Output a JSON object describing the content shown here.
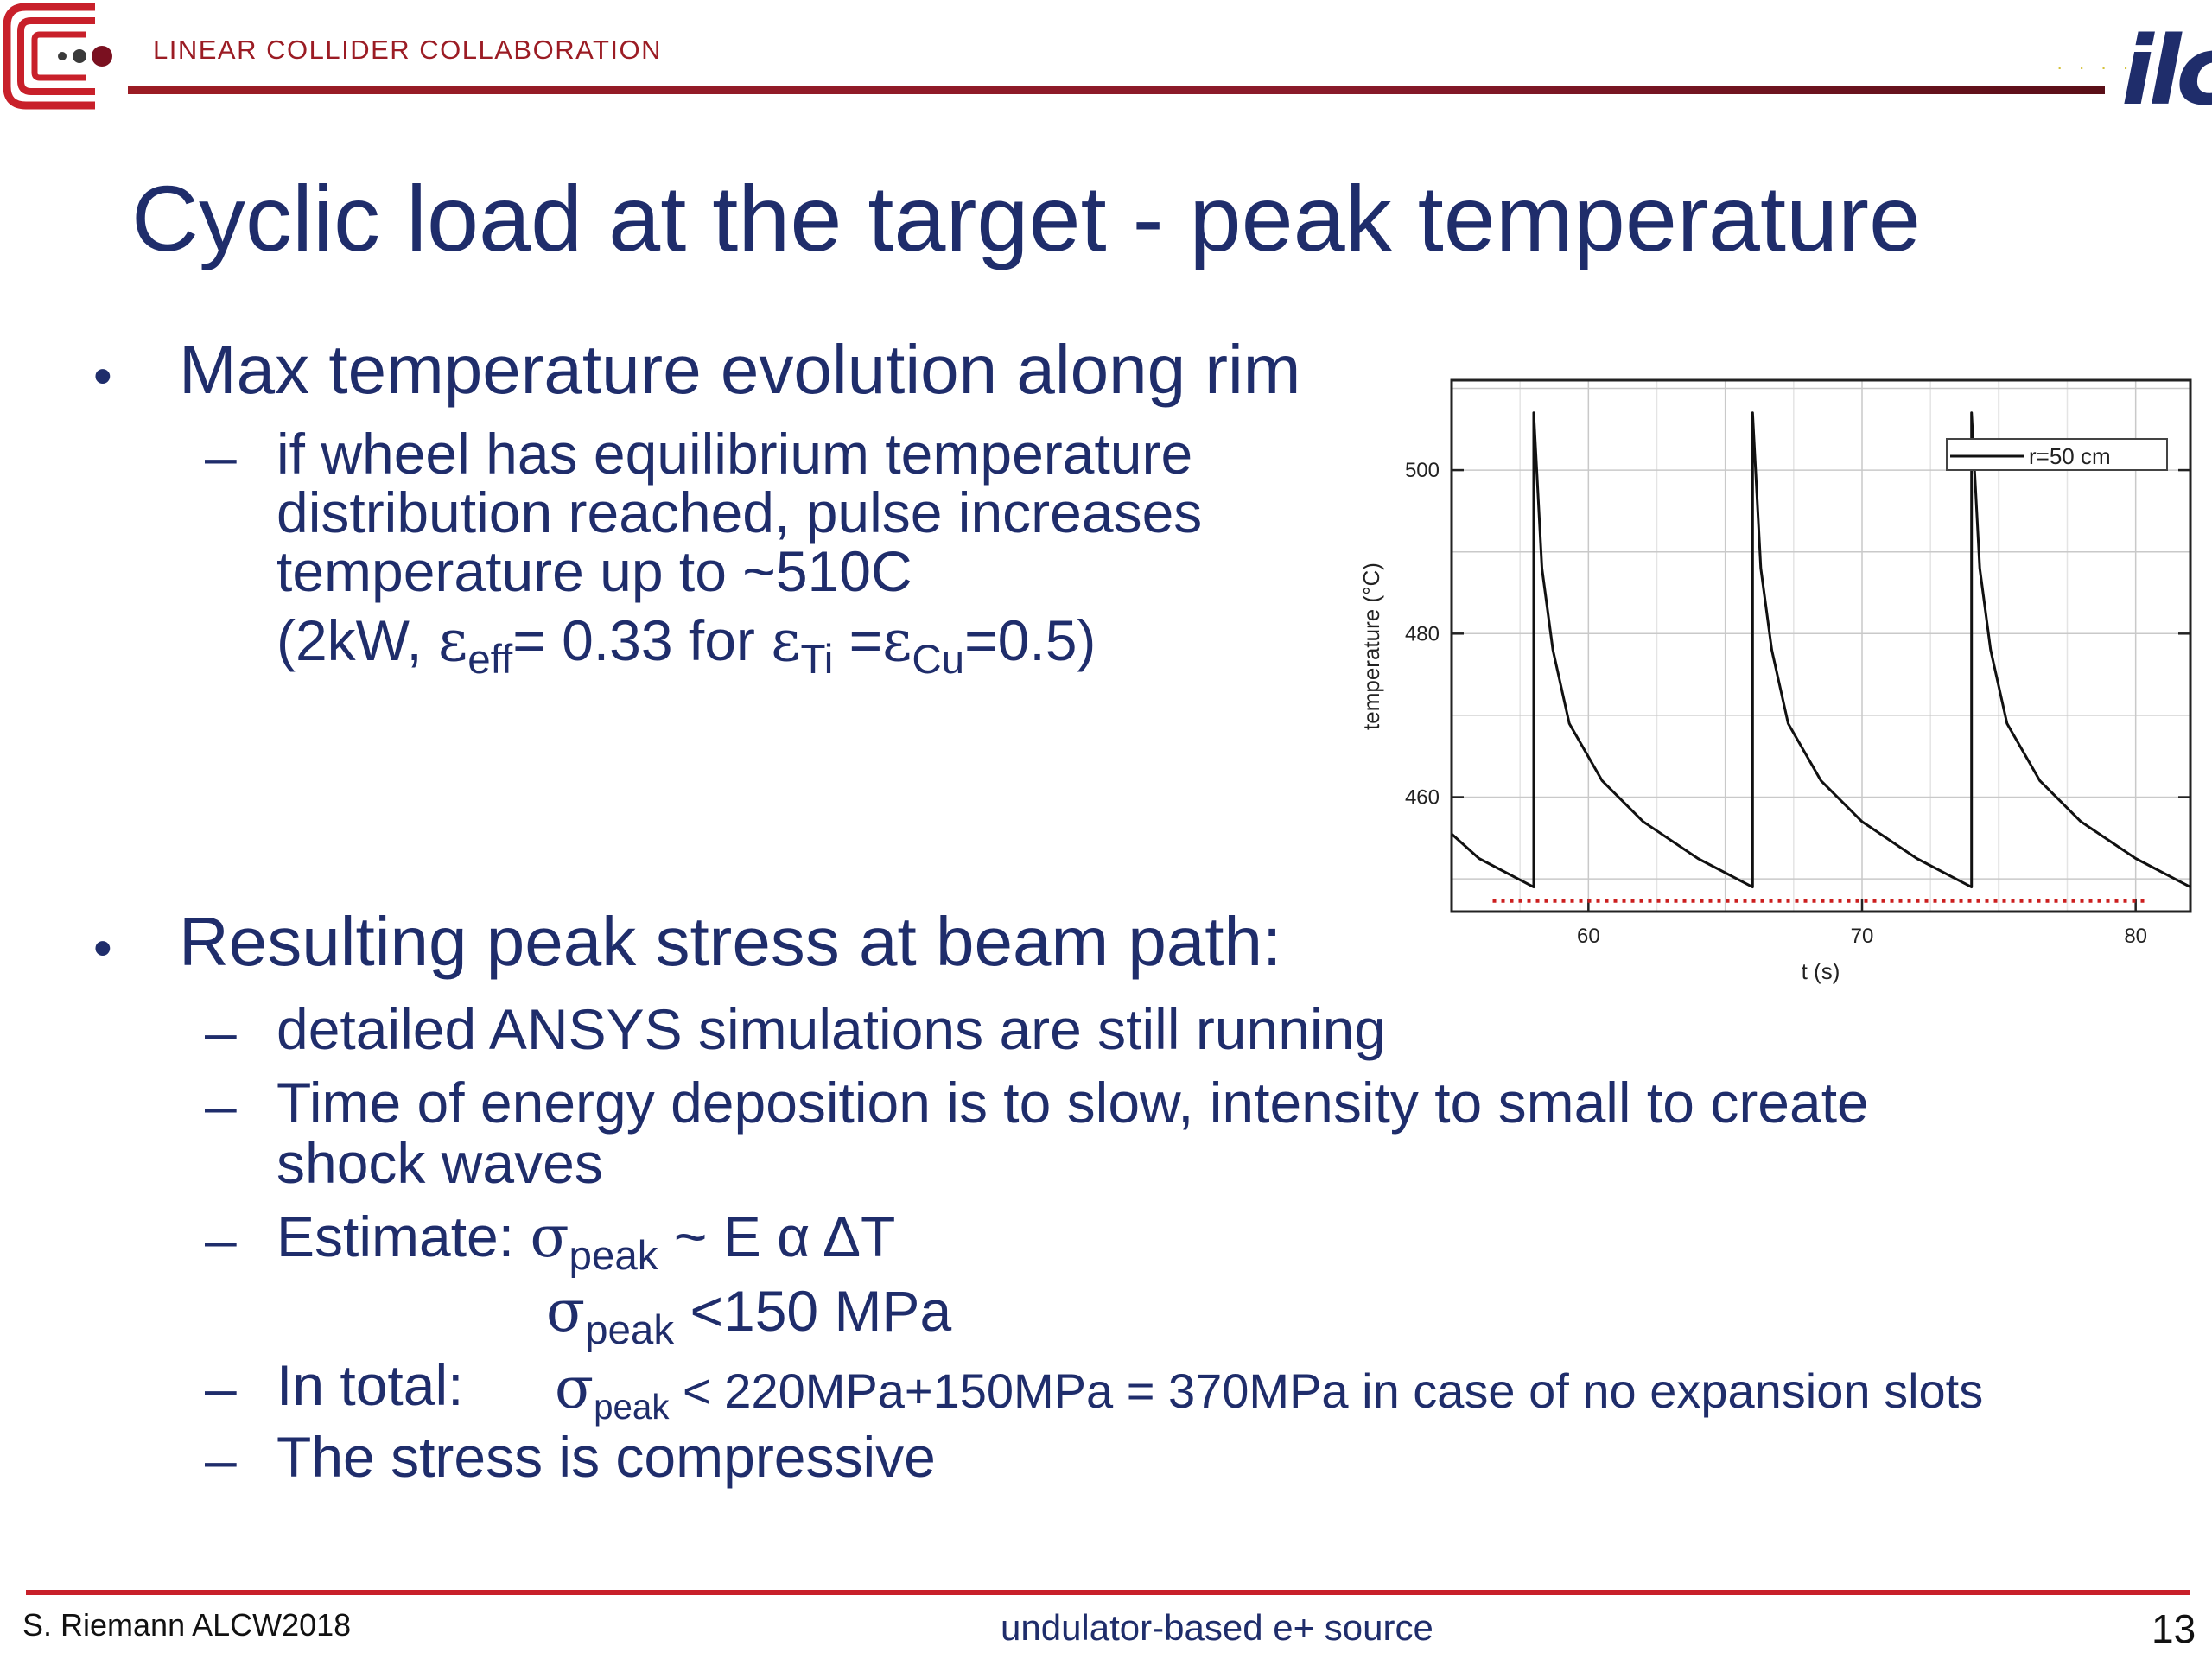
{
  "header": {
    "org_name": "LINEAR COLLIDER COLLABORATION",
    "ilc_logo_text": "ilc",
    "colors": {
      "accent_red": "#9b1c24",
      "navy": "#1f2d6b",
      "footer_red": "#c8202a"
    }
  },
  "title": "Cyclic load at the target - peak temperature",
  "content": {
    "bullet1": "Max temperature evolution along rim",
    "bullet1_sub": {
      "line1": "if wheel has equilibrium temperature",
      "line2": "distribution reached,  pulse increases",
      "line3": "temperature up to ~510C",
      "line4_a": "(2kW, ",
      "eps": "ε",
      "eff": "eff",
      "line4_b": "= 0.33 for  ",
      "ti": "Ti",
      "line4_c": " =",
      "cu": "Cu",
      "line4_d": "=0.5)"
    },
    "bullet2": "Resulting peak stress at beam path:",
    "bullet2_subs": {
      "s1": "detailed ANSYS simulations are still running",
      "s2_line1": "Time of energy deposition is to slow, intensity to small  to create",
      "s2_line2": "shock waves",
      "s3_label": "Estimate: ",
      "sigma": "σ",
      "peak": "peak",
      "s3_rest": "  ~ E α ΔT",
      "s3b_rest": " <150 MPa",
      "s4_label": "In total:",
      "s4_rest": " < 220MPa+150MPa = 370MPa in case of no expansion slots",
      "s5": "The stress is compressive"
    },
    "dash": "–",
    "bullet_symbol": "•"
  },
  "chart_data": {
    "type": "line",
    "title": "",
    "xlabel": "t (s)",
    "ylabel": "temperature (°C)",
    "xlim": [
      55,
      82
    ],
    "ylim": [
      446,
      511
    ],
    "xticks": [
      60,
      70,
      80
    ],
    "yticks": [
      460,
      480,
      500
    ],
    "grid": true,
    "legend": "top-right",
    "series": [
      {
        "name": "r=50 cm",
        "color": "#111111",
        "points": [
          [
            55,
            455.5
          ],
          [
            56,
            452.5
          ],
          [
            58,
            449
          ],
          [
            58,
            507
          ],
          [
            58.3,
            488
          ],
          [
            58.7,
            478
          ],
          [
            59.3,
            469
          ],
          [
            60.5,
            462
          ],
          [
            62,
            457
          ],
          [
            64,
            452.5
          ],
          [
            66,
            449
          ],
          [
            66,
            507
          ],
          [
            66.3,
            488
          ],
          [
            66.7,
            478
          ],
          [
            67.3,
            469
          ],
          [
            68.5,
            462
          ],
          [
            70,
            457
          ],
          [
            72,
            452.5
          ],
          [
            74,
            449
          ],
          [
            74,
            507
          ],
          [
            74.3,
            488
          ],
          [
            74.7,
            478
          ],
          [
            75.3,
            469
          ],
          [
            76.5,
            462
          ],
          [
            78,
            457
          ],
          [
            80,
            452.5
          ],
          [
            82,
            449
          ]
        ]
      }
    ],
    "reference_line": {
      "y": 447.3,
      "x_range": [
        56.5,
        80.5
      ],
      "color": "#cc1f1f",
      "style": "dotted"
    }
  },
  "footer": {
    "left": "S. Riemann ALCW2018",
    "center": "undulator-based e+ source",
    "page": "13"
  }
}
